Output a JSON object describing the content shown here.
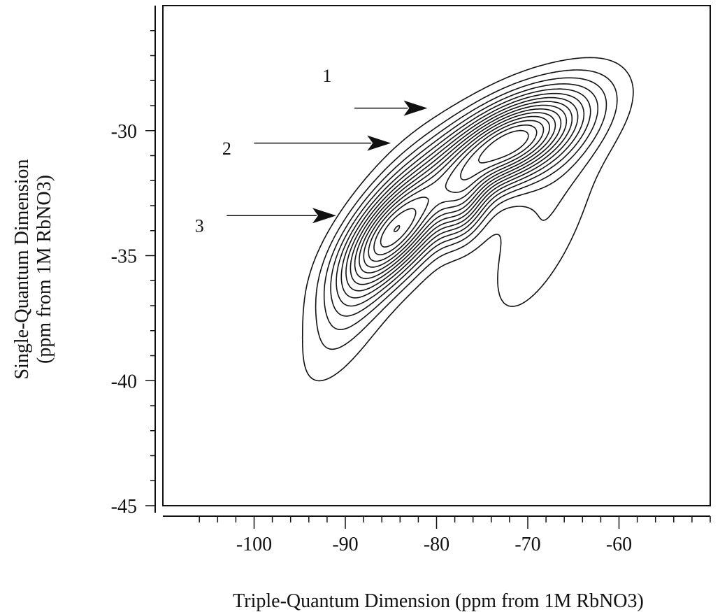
{
  "chart_data": {
    "type": "contour",
    "xlabel": "Triple-Quantum Dimension (ppm from 1M RbNO3)",
    "ylabel_line1": "Single-Quantum Dimension",
    "ylabel_line2": "(ppm from 1M RbNO3)",
    "xlim": [
      -110,
      -50
    ],
    "ylim": [
      -45,
      -25
    ],
    "x_ticks": [
      -100,
      -90,
      -80,
      -70,
      -60
    ],
    "y_ticks": [
      -30,
      -35,
      -40,
      -45
    ],
    "x_minor_step": 2,
    "y_minor_step": 1,
    "contour_levels": 15,
    "peaks": [
      {
        "label": "1",
        "x": -81,
        "y": -29.1,
        "label_x": -92,
        "label_y": -27.8
      },
      {
        "label": "2",
        "x": -85,
        "y": -30.5,
        "label_x": -103,
        "label_y": -30.7
      },
      {
        "label": "3",
        "x": -91,
        "y": -33.4,
        "label_x": -106,
        "label_y": -33.8
      }
    ],
    "components": [
      {
        "x": -72,
        "y": -30.5,
        "sx": 5.5,
        "sy": 1.4,
        "rho": 0.6,
        "amp": 1.0
      },
      {
        "x": -84,
        "y": -33.9,
        "sx": 4.2,
        "sy": 1.6,
        "rho": 0.65,
        "amp": 0.78
      },
      {
        "x": -77,
        "y": -33.1,
        "sx": 1.8,
        "sy": 1.0,
        "rho": 0.3,
        "amp": 0.3
      },
      {
        "x": -88,
        "y": -35.8,
        "sx": 4.0,
        "sy": 2.6,
        "rho": 0.75,
        "amp": 0.22
      },
      {
        "x": -68,
        "y": -33.5,
        "sx": 4.5,
        "sy": 3.0,
        "rho": 0.7,
        "amp": 0.12
      }
    ]
  }
}
